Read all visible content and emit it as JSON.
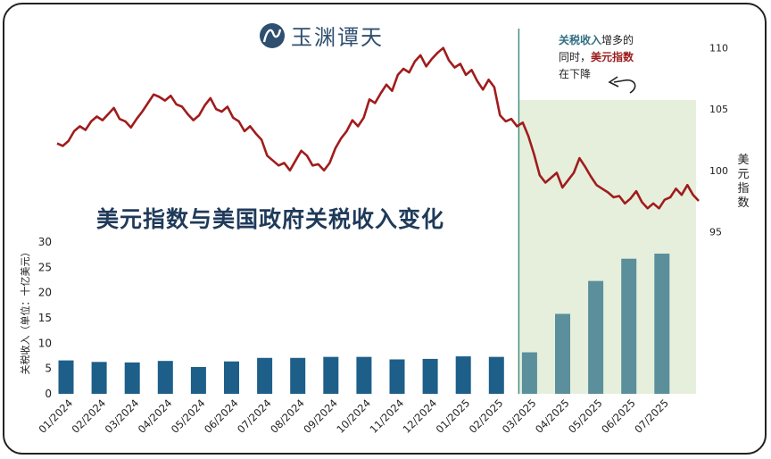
{
  "header": {
    "title": "美元指数与美国政府关税收入变化",
    "logo_text": "玉渊谭天"
  },
  "annotation": {
    "part1": "关税收入",
    "part2": "增多的",
    "part3": "同时，",
    "part4": "美元指数",
    "part5": "在下降"
  },
  "colors": {
    "dxy_line": "#a01c1c",
    "bar_before": "#1e5f8a",
    "bar_after": "#5a8f9b",
    "shade": "#e6efdc",
    "divider": "#3a8a7a",
    "title": "#1f3a5a"
  },
  "chart_data": [
    {
      "type": "bar",
      "categories": [
        "01/2024",
        "02/2024",
        "03/2024",
        "04/2024",
        "05/2024",
        "06/2024",
        "07/2024",
        "08/2024",
        "09/2024",
        "10/2024",
        "11/2024",
        "12/2024",
        "01/2025",
        "02/2025",
        "03/2025",
        "04/2025",
        "05/2025",
        "06/2025",
        "07/2025"
      ],
      "values": [
        6.6,
        6.3,
        6.2,
        6.5,
        5.3,
        6.4,
        7.1,
        7.1,
        7.3,
        7.3,
        6.8,
        6.9,
        7.4,
        7.3,
        8.2,
        15.8,
        22.3,
        26.7,
        27.7
      ],
      "ylabel": "关税收入（单位：十亿美元）",
      "ylim": [
        0,
        30
      ],
      "yticks": [
        0,
        5,
        10,
        15,
        20,
        25,
        30
      ]
    },
    {
      "type": "line",
      "x_start": "01/2024",
      "x_end": "07/2025",
      "values": [
        102.2,
        102.0,
        102.4,
        103.2,
        103.6,
        103.3,
        104.0,
        104.4,
        104.1,
        104.6,
        105.1,
        104.2,
        104.0,
        103.5,
        104.2,
        104.8,
        105.5,
        106.2,
        106.0,
        105.7,
        106.1,
        105.4,
        105.2,
        104.6,
        104.1,
        104.5,
        105.3,
        105.9,
        105.0,
        104.8,
        105.2,
        104.3,
        104.0,
        103.2,
        103.6,
        103.0,
        102.5,
        101.2,
        100.8,
        100.4,
        100.6,
        100.0,
        100.8,
        101.6,
        101.2,
        100.4,
        100.5,
        100.0,
        100.6,
        101.8,
        102.6,
        103.2,
        104.1,
        103.6,
        104.3,
        105.8,
        105.5,
        106.3,
        107.0,
        106.5,
        107.8,
        108.3,
        108.0,
        108.9,
        109.4,
        108.5,
        109.1,
        109.6,
        110.0,
        109.0,
        108.4,
        108.7,
        107.8,
        108.2,
        107.3,
        106.6,
        107.4,
        106.8,
        104.5,
        104.0,
        104.2,
        103.6,
        103.9,
        102.8,
        101.3,
        99.6,
        99.0,
        99.4,
        99.8,
        98.6,
        99.2,
        99.8,
        101.0,
        100.3,
        99.5,
        98.8,
        98.5,
        98.2,
        97.8,
        97.9,
        97.3,
        97.7,
        98.3,
        97.4,
        96.9,
        97.3,
        96.9,
        97.6,
        97.8,
        98.5,
        98.0,
        98.8,
        98.0,
        97.5
      ],
      "ylabel": "美元指数",
      "ylim": [
        94,
        111
      ],
      "yticks": [
        95,
        100,
        105,
        110
      ]
    }
  ]
}
